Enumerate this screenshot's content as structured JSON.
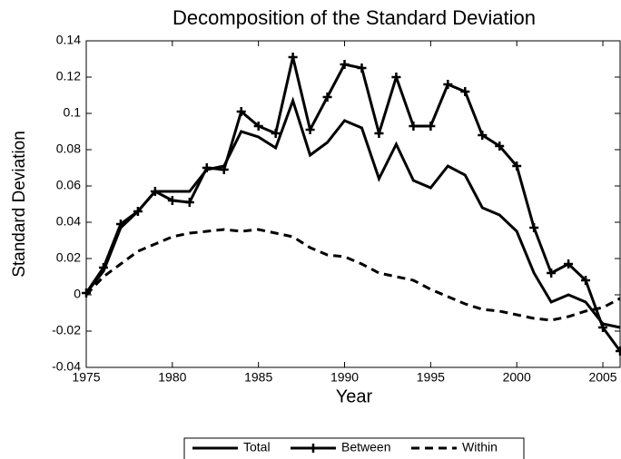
{
  "chart_data": {
    "type": "line",
    "title": "Decomposition of the Standard Deviation",
    "x_label": "Year",
    "y_label": "Standard Deviation",
    "x": [
      1975,
      1976,
      1977,
      1978,
      1979,
      1980,
      1981,
      1982,
      1983,
      1984,
      1985,
      1986,
      1987,
      1988,
      1989,
      1990,
      1991,
      1992,
      1993,
      1994,
      1995,
      1996,
      1997,
      1998,
      1999,
      2000,
      2001,
      2002,
      2003,
      2004,
      2005,
      2006
    ],
    "series": [
      {
        "name": "Total",
        "color": "#000000",
        "style": "solid",
        "marker": "none",
        "values": [
          0.001,
          0.013,
          0.037,
          0.046,
          0.057,
          0.057,
          0.057,
          0.069,
          0.071,
          0.09,
          0.087,
          0.081,
          0.107,
          0.077,
          0.084,
          0.096,
          0.092,
          0.064,
          0.083,
          0.063,
          0.059,
          0.071,
          0.066,
          0.048,
          0.044,
          0.035,
          0.012,
          -0.004,
          0.0,
          -0.004,
          -0.016,
          -0.018
        ]
      },
      {
        "name": "Between",
        "color": "#000000",
        "style": "solid",
        "marker": "+",
        "values": [
          0.001,
          0.015,
          0.039,
          0.046,
          0.057,
          0.052,
          0.051,
          0.07,
          0.069,
          0.101,
          0.093,
          0.089,
          0.131,
          0.091,
          0.109,
          0.127,
          0.125,
          0.089,
          0.12,
          0.093,
          0.093,
          0.116,
          0.112,
          0.088,
          0.082,
          0.071,
          0.037,
          0.012,
          0.017,
          0.008,
          -0.018,
          -0.031
        ]
      },
      {
        "name": "Within",
        "color": "#000000",
        "style": "dashed",
        "marker": "none",
        "values": [
          0.0,
          0.01,
          0.017,
          0.024,
          0.028,
          0.032,
          0.034,
          0.035,
          0.036,
          0.035,
          0.036,
          0.034,
          0.032,
          0.026,
          0.022,
          0.021,
          0.017,
          0.012,
          0.01,
          0.008,
          0.003,
          -0.001,
          -0.005,
          -0.008,
          -0.009,
          -0.011,
          -0.013,
          -0.014,
          -0.012,
          -0.009,
          -0.007,
          -0.002
        ]
      }
    ],
    "xlim": [
      1975,
      2006
    ],
    "xticks": [
      1975,
      1980,
      1985,
      1990,
      1995,
      2000,
      2005
    ],
    "ylim": [
      -0.04,
      0.14
    ],
    "yticks": [
      -0.04,
      -0.02,
      0,
      0.02,
      0.04,
      0.06,
      0.08,
      0.1,
      0.12,
      0.14
    ],
    "grid": false,
    "legend": "bottom"
  }
}
